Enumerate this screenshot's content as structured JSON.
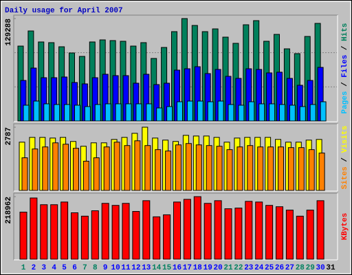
{
  "chart_data": {
    "type": "bar",
    "title": "Daily usage for April 2007",
    "title_color": "#0000c0",
    "legend_separator": " / ",
    "categories": [
      "1",
      "2",
      "3",
      "4",
      "5",
      "6",
      "7",
      "8",
      "9",
      "10",
      "11",
      "12",
      "13",
      "14",
      "15",
      "16",
      "17",
      "18",
      "19",
      "20",
      "21",
      "22",
      "23",
      "24",
      "25",
      "26",
      "27",
      "28",
      "29",
      "30",
      "31"
    ],
    "category_colors": [
      "#008060",
      "#0000ff",
      "#0000ff",
      "#0000ff",
      "#0000ff",
      "#0000ff",
      "#008060",
      "#008060",
      "#0000ff",
      "#0000ff",
      "#0000ff",
      "#0000ff",
      "#0000ff",
      "#008060",
      "#008060",
      "#0000ff",
      "#0000ff",
      "#0000ff",
      "#0000ff",
      "#0000ff",
      "#008060",
      "#008060",
      "#0000ff",
      "#0000ff",
      "#0000ff",
      "#0000ff",
      "#0000ff",
      "#008060",
      "#008060",
      "#0000ff",
      "#000000"
    ],
    "panels": [
      {
        "ylim": [
          0,
          129288
        ],
        "yticks": [
          129288
        ],
        "grid": [
          43096,
          86192
        ],
        "series": [
          {
            "name": "Hits",
            "color": "#00805c",
            "values": [
              94580,
              113670,
              99790,
              98920,
              93710,
              85900,
              81560,
              99790,
              102390,
              101520,
              100650,
              94580,
              98920,
              78960,
              92840,
              112800,
              129288,
              120610,
              112800,
              116270,
              105860,
              98050,
              121480,
              126680,
              100650,
              109330,
              91110,
              85030,
              106730,
              123210,
              null
            ]
          },
          {
            "name": "Files",
            "color": "#0000ff",
            "values": [
              51190,
              66810,
              54660,
              54660,
              55530,
              48590,
              46860,
              54660,
              59000,
              57270,
              57270,
              47720,
              59000,
              45990,
              47720,
              64210,
              65950,
              68550,
              59870,
              65080,
              56400,
              53800,
              65950,
              65080,
              60740,
              61610,
              53800,
              45120,
              51190,
              67680,
              null
            ]
          },
          {
            "name": "Pages",
            "color": "#00c0ff",
            "values": [
              19960,
              25160,
              21690,
              20820,
              20820,
              19960,
              18220,
              20820,
              21690,
              21690,
              21690,
              21690,
              21690,
              16490,
              18220,
              24300,
              25160,
              25160,
              24300,
              25160,
              20820,
              19960,
              24300,
              21690,
              21690,
              20820,
              19960,
              18220,
              20820,
              24300,
              null
            ]
          }
        ]
      },
      {
        "ylim": [
          0,
          2787
        ],
        "yticks": [
          2787
        ],
        "grid": [],
        "series": [
          {
            "name": "Visits",
            "color": "#ffff00",
            "values": [
              2128,
              2338,
              2338,
              2308,
              2338,
              2158,
              1948,
              2098,
              2098,
              2248,
              2338,
              2517,
              2787,
              2308,
              2218,
              2158,
              2428,
              2398,
              2398,
              2338,
              2128,
              2308,
              2338,
              2338,
              2338,
              2248,
              2128,
              2128,
              2218,
              2248,
              null
            ]
          },
          {
            "name": "Sites",
            "color": "#ff8000",
            "values": [
              1439,
              1828,
              1918,
              2098,
              2038,
              1858,
              1289,
              1439,
              1918,
              2128,
              1978,
              2188,
              1978,
              1798,
              1738,
              2008,
              2068,
              2008,
              1978,
              1948,
              1798,
              1918,
              1978,
              1918,
              1918,
              1918,
              1888,
              1888,
              1798,
              1648,
              null
            ]
          }
        ]
      },
      {
        "ylim": [
          0,
          218962
        ],
        "yticks": [
          218962
        ],
        "grid": [],
        "series": [
          {
            "name": "KBytes",
            "color": "#ff0000",
            "values": [
              164810,
              214250,
              190710,
              190710,
              200120,
              162450,
              150680,
              169520,
              195420,
              188350,
              195420,
              167160,
              204830,
              148330,
              155390,
              200120,
              209540,
              218962,
              195420,
              204830,
              176580,
              178930,
              202480,
              200120,
              188350,
              183640,
              171870,
              150680,
              171870,
              204830,
              null
            ]
          }
        ]
      }
    ]
  }
}
